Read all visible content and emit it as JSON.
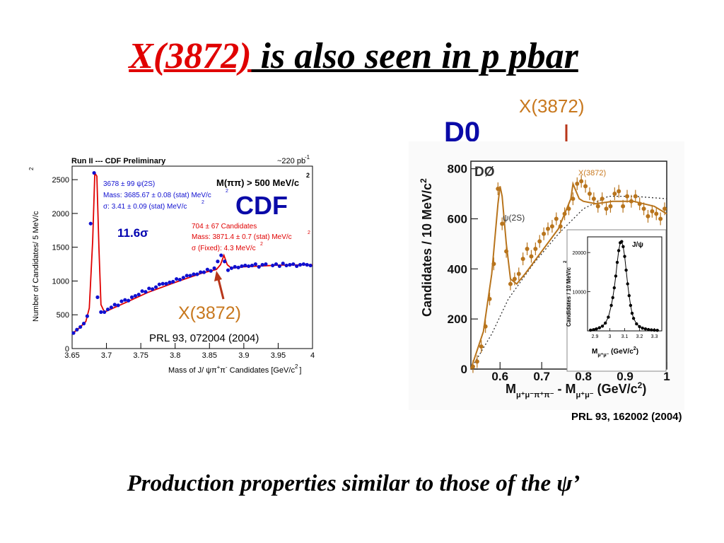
{
  "slide": {
    "title_red": "X(3872)",
    "title_rest": " is also seen in p pbar",
    "footer": "Production properties similar to those of the ψ’"
  },
  "colors": {
    "red": "#e00000",
    "blue": "#1010d0",
    "orange": "#c8781e",
    "d0_fill": "#b8741c"
  },
  "cdf": {
    "header_left": "Run II --- CDF Preliminary",
    "header_right": "~220 pb",
    "header_right_sup": "-1",
    "cut": "M(ππ) > 500 MeV/c",
    "cut_sup": "2",
    "tag": "CDF",
    "significance": "11.6σ",
    "psi_lines": [
      "3678 ±  99 ψ(2S)",
      "Mass: 3685.67  ± 0.08 (stat)  MeV/c",
      "σ: 3.41  ± 0.09 (stat)  MeV/c"
    ],
    "x_lines": [
      "704 ±  67 Candidates",
      "Mass: 3871.4  ± 0.7 (stat)  MeV/c",
      "σ (Fixed): 4.3  MeV/c"
    ],
    "sup2": "2",
    "ylabel": "Number of Candidates/ 5 MeV/c",
    "xlabel": "Mass of J/ ψπ",
    "xlabel_sup1": "+",
    "xlabel_mid": "π",
    "xlabel_sup2": "-",
    "xlabel_end": " Candidates [GeV/c",
    "xlabel_close": "]",
    "arrow_label": "X(3872)",
    "reference": "PRL 93, 072004 (2004)"
  },
  "d0": {
    "tag": "D0",
    "x_marker_label": "X(3872)",
    "frame_tag": "DØ",
    "psi_label": "ψ(2S)",
    "x_label": "X(3872)",
    "ylabel": "Candidates / 10 MeV/c",
    "ylabel_sup": "2",
    "xlabel": "M",
    "xlabel_sub1": "μ⁺μ⁻π⁺π⁻",
    "xlabel_mid": " - M",
    "xlabel_sub2": "μ⁺μ⁻",
    "xlabel_unit": "  (GeV/c",
    "xlabel_unit_sup": "2",
    "xlabel_close": ")",
    "inset_title": "J/ψ",
    "inset_ylabel": "Candidates / 10 MeV/c",
    "inset_xlabel": "M",
    "inset_xsub": "μ⁺μ⁻",
    "inset_xunit": "  (GeV/c",
    "inset_xsup": "2",
    "inset_xclose": ")",
    "reference": "PRL 93, 162002 (2004)"
  },
  "chart_data": [
    {
      "type": "scatter",
      "experiment": "CDF",
      "title": "Run II --- CDF Preliminary",
      "xlabel": "Mass of J/ψπ+π- Candidates [GeV/c2]",
      "ylabel": "Number of Candidates/ 5 MeV/c2",
      "xlim": [
        3.65,
        4.0
      ],
      "ylim": [
        0,
        2700
      ],
      "xticks": [
        "3.65",
        "3.7",
        "3.75",
        "3.8",
        "3.85",
        "3.9",
        "3.95",
        "4"
      ],
      "yticks": [
        "0",
        "500",
        "1000",
        "1500",
        "2000",
        "2500"
      ],
      "series": [
        {
          "kind": "points",
          "x": [
            3.652,
            3.657,
            3.662,
            3.667,
            3.672,
            3.677,
            3.682,
            3.687,
            3.692,
            3.697,
            3.702,
            3.707,
            3.712,
            3.717,
            3.722,
            3.727,
            3.732,
            3.737,
            3.742,
            3.747,
            3.752,
            3.757,
            3.762,
            3.767,
            3.772,
            3.777,
            3.782,
            3.787,
            3.792,
            3.797,
            3.802,
            3.807,
            3.812,
            3.817,
            3.822,
            3.827,
            3.832,
            3.837,
            3.842,
            3.847,
            3.852,
            3.857,
            3.862,
            3.867,
            3.872,
            3.877,
            3.882,
            3.887,
            3.892,
            3.897,
            3.902,
            3.907,
            3.912,
            3.917,
            3.922,
            3.927,
            3.932,
            3.942,
            3.947,
            3.952,
            3.957,
            3.962,
            3.967,
            3.972,
            3.977,
            3.982,
            3.987,
            3.992,
            3.997
          ],
          "y": [
            230,
            280,
            320,
            370,
            480,
            1850,
            2600,
            760,
            540,
            540,
            580,
            610,
            650,
            640,
            700,
            720,
            710,
            760,
            780,
            800,
            850,
            840,
            890,
            880,
            910,
            950,
            960,
            960,
            980,
            990,
            1030,
            1020,
            1050,
            1080,
            1080,
            1100,
            1100,
            1130,
            1130,
            1170,
            1150,
            1190,
            1290,
            1380,
            1290,
            1160,
            1190,
            1210,
            1200,
            1220,
            1230,
            1220,
            1230,
            1250,
            1210,
            1240,
            1250,
            1230,
            1250,
            1220,
            1260,
            1230,
            1240,
            1250,
            1220,
            1240,
            1250,
            1240,
            1230
          ]
        },
        {
          "kind": "fit",
          "x": [
            3.65,
            3.66,
            3.67,
            3.675,
            3.68,
            3.683,
            3.686,
            3.689,
            3.692,
            3.697,
            3.71,
            3.73,
            3.76,
            3.8,
            3.84,
            3.86,
            3.866,
            3.871,
            3.876,
            3.882,
            3.9,
            3.95,
            4.0
          ],
          "y": [
            220,
            300,
            400,
            600,
            1600,
            2600,
            2550,
            1500,
            650,
            540,
            600,
            690,
            830,
            980,
            1120,
            1170,
            1240,
            1380,
            1240,
            1190,
            1210,
            1235,
            1240
          ]
        }
      ],
      "annotations": [
        "ψ(2S)",
        "X(3872)",
        "11.6σ"
      ]
    },
    {
      "type": "scatter",
      "experiment": "D0",
      "xlabel": "Mμ+μ-π+π- - Mμ+μ-  (GeV/c2)",
      "ylabel": "Candidates / 10 MeV/c2",
      "xlim": [
        0.53,
        1.0
      ],
      "ylim": [
        0,
        830
      ],
      "xticks": [
        "0.6",
        "0.7",
        "0.8",
        "0.9",
        "1"
      ],
      "yticks": [
        "0",
        "200",
        "400",
        "600",
        "800"
      ],
      "series": [
        {
          "kind": "points",
          "x": [
            0.535,
            0.545,
            0.555,
            0.565,
            0.575,
            0.585,
            0.595,
            0.605,
            0.615,
            0.625,
            0.635,
            0.645,
            0.655,
            0.665,
            0.675,
            0.685,
            0.695,
            0.705,
            0.715,
            0.725,
            0.735,
            0.745,
            0.755,
            0.765,
            0.775,
            0.785,
            0.795,
            0.805,
            0.815,
            0.825,
            0.835,
            0.845,
            0.855,
            0.865,
            0.875,
            0.885,
            0.895,
            0.905,
            0.915,
            0.925,
            0.935,
            0.945,
            0.955,
            0.965,
            0.975,
            0.985,
            0.995
          ],
          "y": [
            10,
            30,
            90,
            170,
            280,
            420,
            720,
            580,
            470,
            340,
            360,
            380,
            440,
            480,
            450,
            480,
            510,
            540,
            560,
            570,
            600,
            570,
            620,
            640,
            680,
            740,
            750,
            730,
            700,
            680,
            650,
            680,
            640,
            650,
            700,
            710,
            650,
            690,
            670,
            690,
            660,
            640,
            610,
            630,
            620,
            600,
            640
          ]
        },
        {
          "kind": "fit",
          "x": [
            0.53,
            0.56,
            0.58,
            0.595,
            0.6,
            0.605,
            0.615,
            0.625,
            0.64,
            0.66,
            0.7,
            0.74,
            0.77,
            0.775,
            0.78,
            0.79,
            0.8,
            0.83,
            0.87,
            0.92,
            0.97,
            1.0
          ],
          "y": [
            0,
            150,
            380,
            660,
            730,
            690,
            500,
            360,
            340,
            380,
            470,
            560,
            680,
            740,
            720,
            680,
            670,
            660,
            670,
            670,
            650,
            620
          ]
        },
        {
          "kind": "background",
          "x": [
            0.53,
            0.58,
            0.62,
            0.68,
            0.74,
            0.8,
            0.86,
            0.92,
            1.0
          ],
          "y": [
            0,
            140,
            280,
            420,
            540,
            640,
            690,
            690,
            680
          ]
        }
      ],
      "annotations": [
        "ψ(2S)",
        "X(3872)"
      ],
      "inset": {
        "title": "J/ψ",
        "xlabel": "Mμ+μ- (GeV/c2)",
        "ylabel": "Candidates / 10 MeV/c2",
        "xlim": [
          2.85,
          3.35
        ],
        "ylim": [
          0,
          24000
        ],
        "xticks": [
          "2.9",
          "3",
          "3.1",
          "3.2",
          "3.3"
        ],
        "yticks": [
          "10000",
          "20000"
        ],
        "x": [
          2.87,
          2.89,
          2.91,
          2.93,
          2.95,
          2.97,
          2.99,
          3.01,
          3.02,
          3.03,
          3.04,
          3.05,
          3.06,
          3.07,
          3.08,
          3.09,
          3.1,
          3.11,
          3.12,
          3.13,
          3.14,
          3.15,
          3.16,
          3.18,
          3.2,
          3.22,
          3.24,
          3.26,
          3.28,
          3.3,
          3.32
        ],
        "y": [
          200,
          300,
          500,
          800,
          1200,
          2000,
          3500,
          6500,
          8500,
          11000,
          14000,
          17500,
          20500,
          22500,
          22800,
          21500,
          19000,
          15500,
          12000,
          9000,
          6500,
          4500,
          3200,
          1800,
          1100,
          700,
          500,
          350,
          250,
          200,
          150
        ]
      }
    }
  ]
}
